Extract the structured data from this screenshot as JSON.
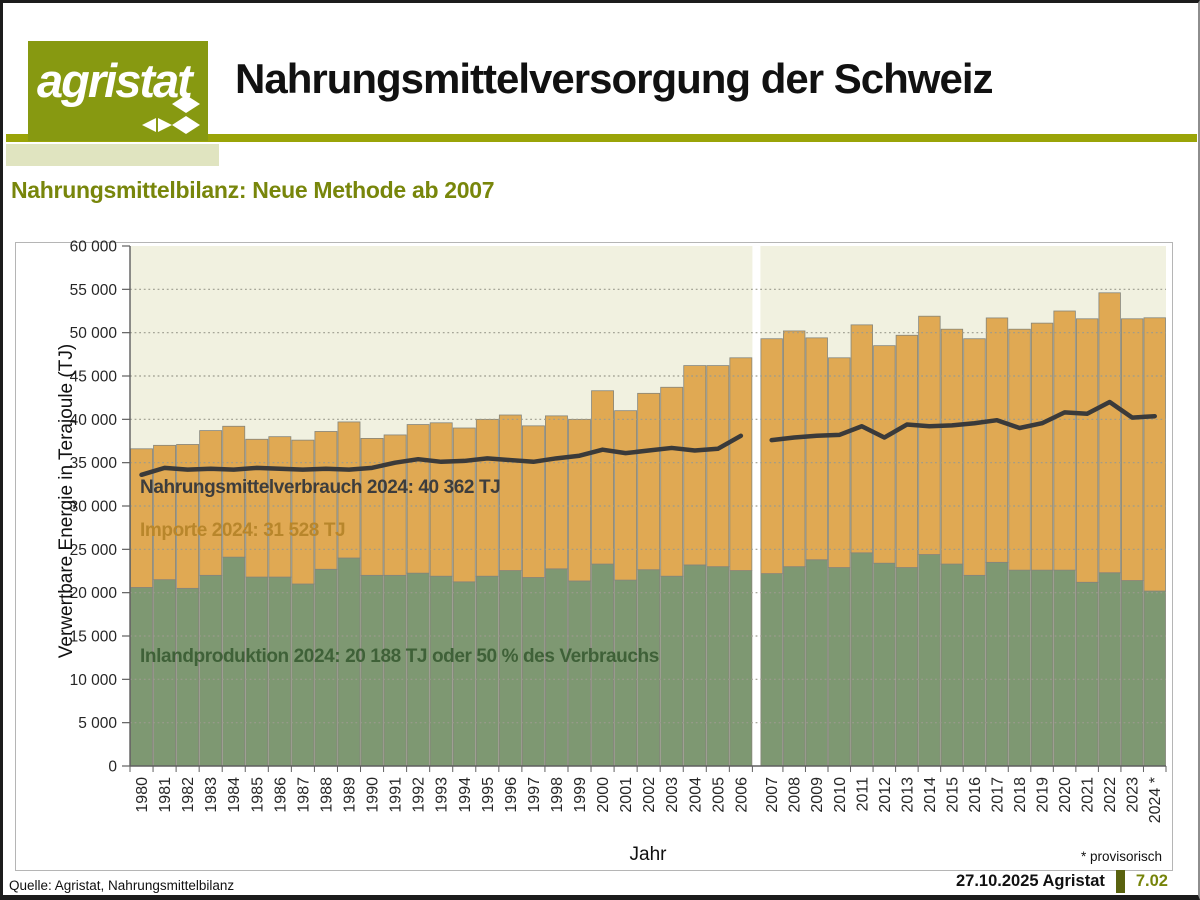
{
  "header": {
    "logo_text": "agristat",
    "title": "Nahrungsmittelversorgung der Schweiz"
  },
  "subtitle": "Nahrungsmittelbilanz: Neue Methode ab 2007",
  "chart_data": {
    "type": "bar",
    "subtype": "stacked-bars-with-line",
    "title": "",
    "xlabel": "Jahr",
    "ylabel": "Verwertbare Energie in Terajoule (TJ)",
    "ylim": [
      0,
      60000
    ],
    "ytick_step": 5000,
    "grid": "dotted-horizontal",
    "plot_bg": "#f1f1e0",
    "method_break_after_index": 27,
    "provisional_year": "2024",
    "provisional_marker": "*",
    "footnote": "* provisorisch",
    "categories": [
      1980,
      1981,
      1982,
      1983,
      1984,
      1985,
      1986,
      1987,
      1988,
      1989,
      1990,
      1991,
      1992,
      1993,
      1994,
      1995,
      1996,
      1997,
      1998,
      1999,
      2000,
      2001,
      2002,
      2003,
      2004,
      2005,
      2006,
      2007,
      2008,
      2009,
      2010,
      2011,
      2012,
      2013,
      2014,
      2015,
      2016,
      2017,
      2018,
      2019,
      2020,
      2021,
      2022,
      2023,
      2024
    ],
    "series": [
      {
        "name": "Inlandproduktion",
        "type": "bar",
        "color": "#7e9872",
        "values": [
          20600,
          21500,
          20500,
          22000,
          24100,
          21800,
          21800,
          21000,
          22700,
          24000,
          22000,
          22000,
          22250,
          21900,
          21250,
          21900,
          22550,
          21750,
          22750,
          21350,
          23300,
          21450,
          22650,
          21900,
          23200,
          23000,
          22550,
          22200,
          23000,
          23800,
          22900,
          24600,
          23400,
          22900,
          24400,
          23300,
          22000,
          23500,
          22600,
          22600,
          22600,
          21200,
          22300,
          21400,
          20188
        ]
      },
      {
        "name": "Importe",
        "type": "bar",
        "color": "#e0a953",
        "values": [
          16000,
          15500,
          16600,
          16700,
          15100,
          15900,
          16200,
          16600,
          15900,
          15700,
          15800,
          16200,
          17150,
          17700,
          17750,
          18100,
          17950,
          17500,
          17650,
          18650,
          20000,
          19550,
          20350,
          21800,
          23000,
          23200,
          24550,
          27100,
          27200,
          25600,
          24200,
          26300,
          25100,
          26800,
          27500,
          27100,
          27300,
          28200,
          27800,
          28500,
          29900,
          30400,
          32300,
          30200,
          31528
        ]
      },
      {
        "name": "Nahrungsmittelverbrauch",
        "type": "line",
        "color": "#3a3a3a",
        "values": [
          33600,
          34400,
          34200,
          34300,
          34200,
          34400,
          34300,
          34200,
          34300,
          34200,
          34400,
          35000,
          35400,
          35100,
          35200,
          35500,
          35300,
          35100,
          35500,
          35800,
          36500,
          36100,
          36400,
          36700,
          36400,
          36600,
          38100,
          37600,
          37900,
          38100,
          38200,
          39200,
          37900,
          39400,
          39200,
          39300,
          39550,
          39900,
          39000,
          39550,
          40800,
          40650,
          42000,
          40200,
          40362
        ]
      }
    ],
    "annotations": [
      {
        "text": "Nahrungsmittelverbrauch 2024: 40 362 TJ",
        "color": "#3d3d3d"
      },
      {
        "text": "Importe 2024: 31 528 TJ",
        "color": "#b8862b"
      },
      {
        "text": "Inlandproduktion 2024: 20 188 TJ oder 50 % des Verbrauchs",
        "color": "#3f6138"
      }
    ]
  },
  "colors": {
    "accent_olive": "#879911",
    "accent_olive_light": "#e0e4c0",
    "header_rule": "#9aa408",
    "subtitle_text": "#78860b",
    "footer_accent_bar": "#59620f",
    "page_ref_text": "#76840a"
  },
  "footer": {
    "source": "Quelle: Agristat, Nahrungsmittelbilanz",
    "date_author": "27.10.2025 Agristat",
    "page_ref": "7.02"
  }
}
